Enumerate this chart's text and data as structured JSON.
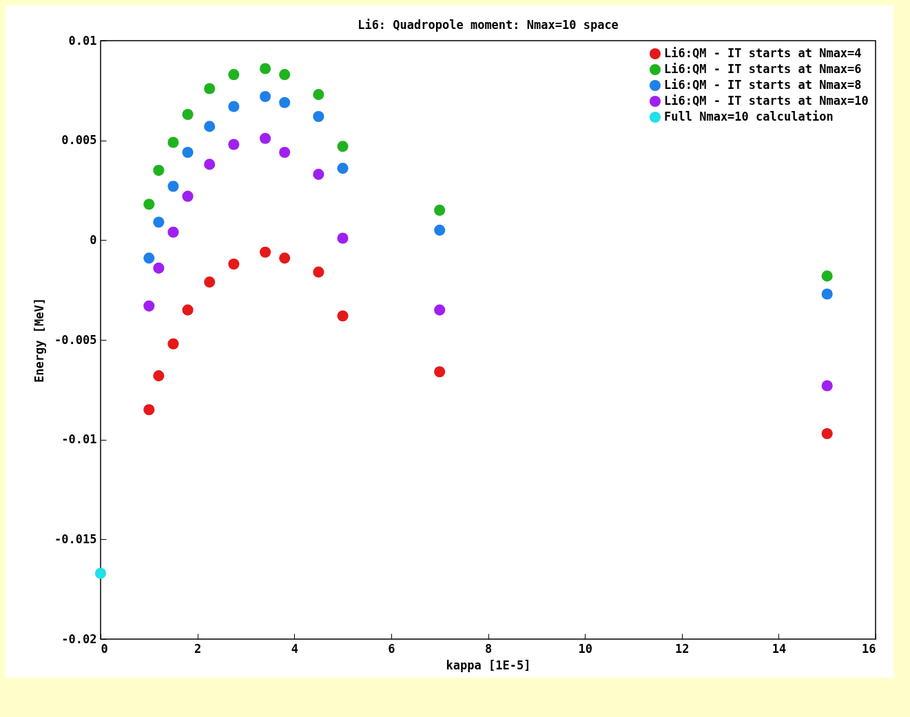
{
  "chart_data": {
    "type": "scatter",
    "title": "Li6: Quadropole moment: Nmax=10 space",
    "xlabel": "kappa [1E-5]",
    "ylabel": "Energy [MeV]",
    "x": [
      1,
      1.2,
      1.5,
      1.8,
      2.25,
      2.75,
      3.4,
      3.8,
      4.5,
      5,
      7,
      15
    ],
    "series": [
      {
        "name": "Li6:QM - IT starts at Nmax=4",
        "color": "#e51919",
        "values": [
          -0.0085,
          -0.0068,
          -0.0052,
          -0.0035,
          -0.0021,
          -0.0012,
          -0.0006,
          -0.0009,
          -0.0016,
          -0.0038,
          -0.0066,
          -0.0097
        ]
      },
      {
        "name": "Li6:QM - IT starts at Nmax=6",
        "color": "#1fb31f",
        "values": [
          0.0018,
          0.0035,
          0.0049,
          0.0063,
          0.0076,
          0.0083,
          0.0086,
          0.0083,
          0.0073,
          0.0047,
          0.0015,
          -0.0018
        ]
      },
      {
        "name": "Li6:QM - IT starts at Nmax=8",
        "color": "#1f80e8",
        "values": [
          -0.0009,
          0.0009,
          0.0027,
          0.0044,
          0.0057,
          0.0067,
          0.0072,
          0.0069,
          0.0062,
          0.0036,
          0.0005,
          -0.0027
        ]
      },
      {
        "name": "Li6:QM - IT starts at Nmax=10",
        "color": "#a020f0",
        "values": [
          -0.0033,
          -0.0014,
          0.0004,
          0.0022,
          0.0038,
          0.0048,
          0.0051,
          0.0044,
          0.0033,
          0.0001,
          -0.0035,
          -0.0073
        ]
      },
      {
        "name": "Full Nmax=10 calculation",
        "color": "#20e0e8",
        "x": [
          0
        ],
        "values": [
          -0.0167
        ]
      }
    ],
    "xlim": [
      0,
      16
    ],
    "xticks": [
      0,
      2,
      4,
      6,
      8,
      10,
      12,
      14,
      16
    ],
    "ylim": [
      -0.02,
      0.01
    ],
    "yticks": [
      -0.02,
      -0.015,
      -0.01,
      -0.005,
      0,
      0.005,
      0.01
    ],
    "grid": false,
    "legend": "top right",
    "marker": "circle"
  }
}
